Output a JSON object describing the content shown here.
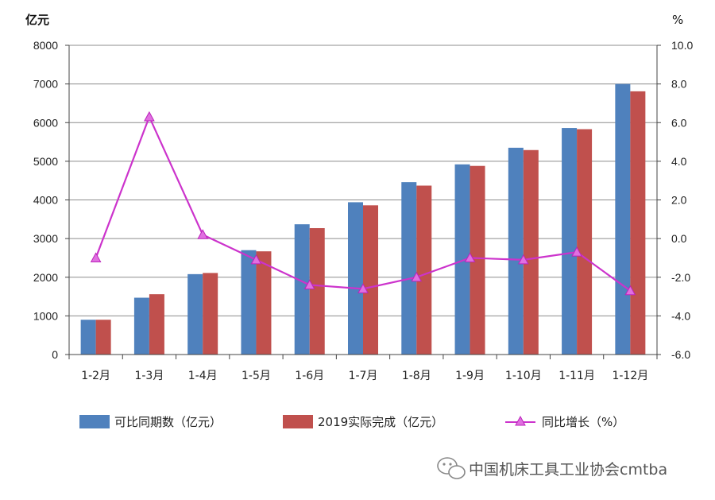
{
  "chart_data": {
    "type": "bar",
    "categories": [
      "1-2月",
      "1-3月",
      "1-4月",
      "1-5月",
      "1-6月",
      "1-7月",
      "1-8月",
      "1-9月",
      "1-10月",
      "1-11月",
      "1-12月"
    ],
    "series": [
      {
        "name": "可比同期数（亿元）",
        "type": "bar",
        "axis": "left",
        "color": "#4f81bd",
        "values": [
          900,
          1470,
          2080,
          2700,
          3370,
          3940,
          4460,
          4920,
          5350,
          5860,
          7000
        ]
      },
      {
        "name": "2019实际完成（亿元）",
        "type": "bar",
        "axis": "left",
        "color": "#c0504d",
        "values": [
          900,
          1560,
          2110,
          2670,
          3270,
          3860,
          4370,
          4880,
          5290,
          5830,
          6810
        ]
      },
      {
        "name": "同比增长（%）",
        "type": "line",
        "axis": "right",
        "color": "#cc33cc",
        "marker": "triangle",
        "values": [
          -1.0,
          6.3,
          0.2,
          -1.1,
          -2.4,
          -2.6,
          -2.0,
          -1.0,
          -1.1,
          -0.7,
          -2.7
        ]
      }
    ],
    "y_left": {
      "unit_label": "亿元",
      "min": 0,
      "max": 8000,
      "step": 1000,
      "ticks": [
        "0",
        "1000",
        "2000",
        "3000",
        "4000",
        "5000",
        "6000",
        "7000",
        "8000"
      ]
    },
    "y_right": {
      "unit_label": "%",
      "min": -6,
      "max": 10,
      "step": 2,
      "ticks": [
        "-6.0",
        "-4.0",
        "-2.0",
        "0.0",
        "2.0",
        "4.0",
        "6.0",
        "8.0",
        "10.0"
      ]
    },
    "grid": true,
    "legend_position": "bottom"
  },
  "watermark": {
    "text": "中国机床工具工业协会cmtba",
    "icon": "wechat-icon"
  }
}
